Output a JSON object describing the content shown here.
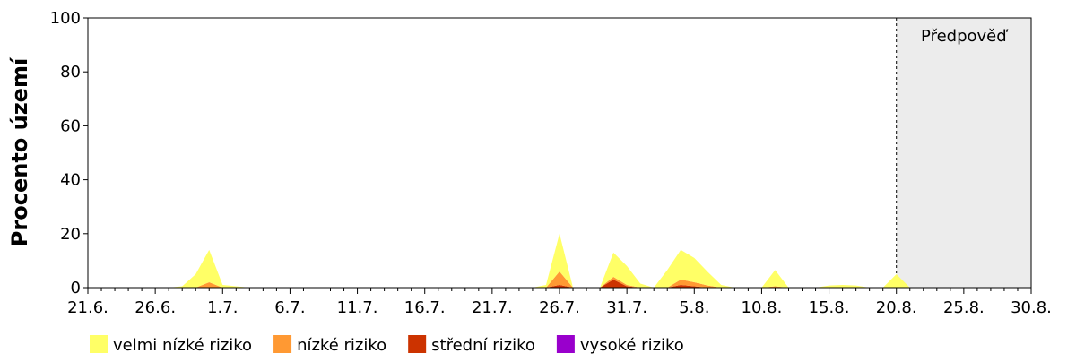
{
  "chart_data": {
    "type": "stacked-area",
    "y_label": "Procento území",
    "forecast_label": "Předpověď",
    "forecast_start": "20.8.",
    "categories": [
      "21.6.",
      null,
      null,
      null,
      null,
      "26.6.",
      null,
      null,
      null,
      null,
      "1.7.",
      null,
      null,
      null,
      null,
      "6.7.",
      null,
      null,
      null,
      null,
      "11.7.",
      null,
      null,
      null,
      null,
      "16.7.",
      null,
      null,
      null,
      null,
      "21.7.",
      null,
      null,
      null,
      null,
      "26.7.",
      null,
      null,
      null,
      null,
      "31.7.",
      null,
      null,
      null,
      null,
      "5.8.",
      null,
      null,
      null,
      null,
      "10.8.",
      null,
      null,
      null,
      null,
      "15.8.",
      null,
      null,
      null,
      null,
      "20.8.",
      null,
      null,
      null,
      null,
      "25.8.",
      null,
      null,
      null,
      null,
      "30.8."
    ],
    "ylim": [
      0,
      100
    ],
    "yticks": [
      0,
      20,
      40,
      60,
      80,
      100
    ],
    "series": [
      {
        "name": "velmi nízké riziko",
        "color": "#ffff66",
        "values": [
          0,
          0,
          0,
          0,
          0,
          0,
          0,
          0.5,
          5,
          12,
          1,
          0.5,
          0,
          0,
          0,
          0,
          0,
          0,
          0,
          0,
          0,
          0,
          0,
          0,
          0,
          0,
          0,
          0,
          0,
          0,
          0,
          0,
          0,
          0,
          1,
          14,
          0,
          0,
          0,
          9,
          7,
          1.5,
          0,
          6.5,
          11,
          9,
          5,
          1,
          0,
          0,
          0,
          6,
          0,
          0,
          0,
          0.8,
          1,
          0.8,
          0,
          0,
          5,
          0,
          0,
          0,
          0,
          0,
          0,
          0,
          0,
          0,
          0
        ]
      },
      {
        "name": "nízké riziko",
        "color": "#ff9933",
        "values": [
          0,
          0,
          0,
          0,
          0,
          0,
          0,
          0,
          0,
          2,
          0,
          0,
          0,
          0,
          0,
          0,
          0,
          0,
          0,
          0,
          0,
          0,
          0,
          0,
          0,
          0,
          0,
          0,
          0,
          0,
          0,
          0,
          0,
          0,
          0,
          5,
          0,
          0,
          0,
          1,
          0.5,
          0,
          0,
          0,
          2,
          1.5,
          0.8,
          0,
          0,
          0,
          0,
          0.5,
          0,
          0,
          0,
          0,
          0,
          0,
          0,
          0,
          0,
          0,
          0,
          0,
          0,
          0,
          0,
          0,
          0,
          0,
          0
        ]
      },
      {
        "name": "střední riziko",
        "color": "#cc3300",
        "values": [
          0,
          0,
          0,
          0,
          0,
          0,
          0,
          0,
          0,
          0,
          0,
          0,
          0,
          0,
          0,
          0,
          0,
          0,
          0,
          0,
          0,
          0,
          0,
          0,
          0,
          0,
          0,
          0,
          0,
          0,
          0,
          0,
          0,
          0,
          0,
          1,
          0,
          0,
          0,
          3,
          0.5,
          0,
          0,
          0,
          1,
          0.5,
          0,
          0,
          0,
          0,
          0,
          0,
          0,
          0,
          0,
          0,
          0,
          0,
          0,
          0,
          0,
          0,
          0,
          0,
          0,
          0,
          0,
          0,
          0,
          0,
          0
        ]
      },
      {
        "name": "vysoké riziko",
        "color": "#9900cc",
        "values": [
          0,
          0,
          0,
          0,
          0,
          0,
          0,
          0,
          0,
          0,
          0,
          0,
          0,
          0,
          0,
          0,
          0,
          0,
          0,
          0,
          0,
          0,
          0,
          0,
          0,
          0,
          0,
          0,
          0,
          0,
          0,
          0,
          0,
          0,
          0,
          0,
          0,
          0,
          0,
          0,
          0,
          0,
          0,
          0,
          0,
          0,
          0,
          0,
          0,
          0,
          0,
          0,
          0,
          0,
          0,
          0,
          0,
          0,
          0,
          0,
          0,
          0,
          0,
          0,
          0,
          0,
          0,
          0,
          0,
          0,
          0
        ]
      }
    ]
  }
}
